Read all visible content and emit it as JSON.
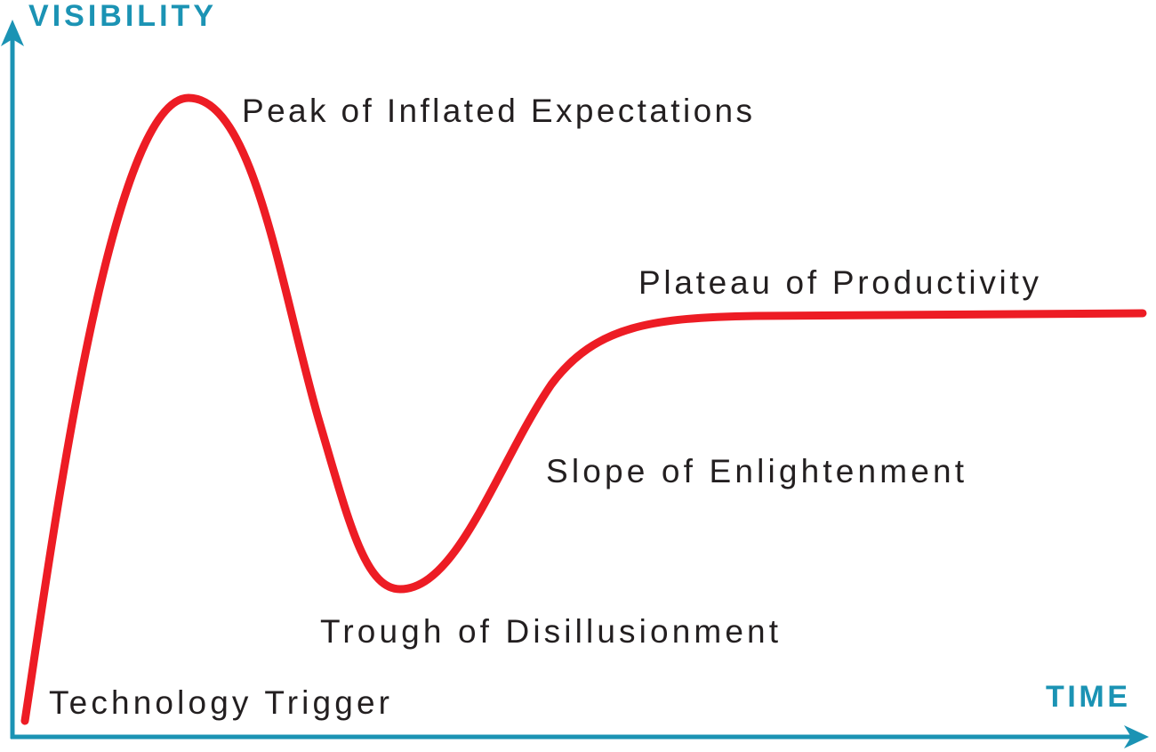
{
  "colors": {
    "axis": "#1b93b4",
    "curve": "#ed1c24",
    "text": "#231f20"
  },
  "axes": {
    "y_label": "VISIBILITY",
    "x_label": "TIME"
  },
  "phases": [
    {
      "label": "Technology Trigger"
    },
    {
      "label": "Peak of Inflated Expectations"
    },
    {
      "label": "Trough of Disillusionment"
    },
    {
      "label": "Slope of Enlightenment"
    },
    {
      "label": "Plateau of Productivity"
    }
  ]
}
